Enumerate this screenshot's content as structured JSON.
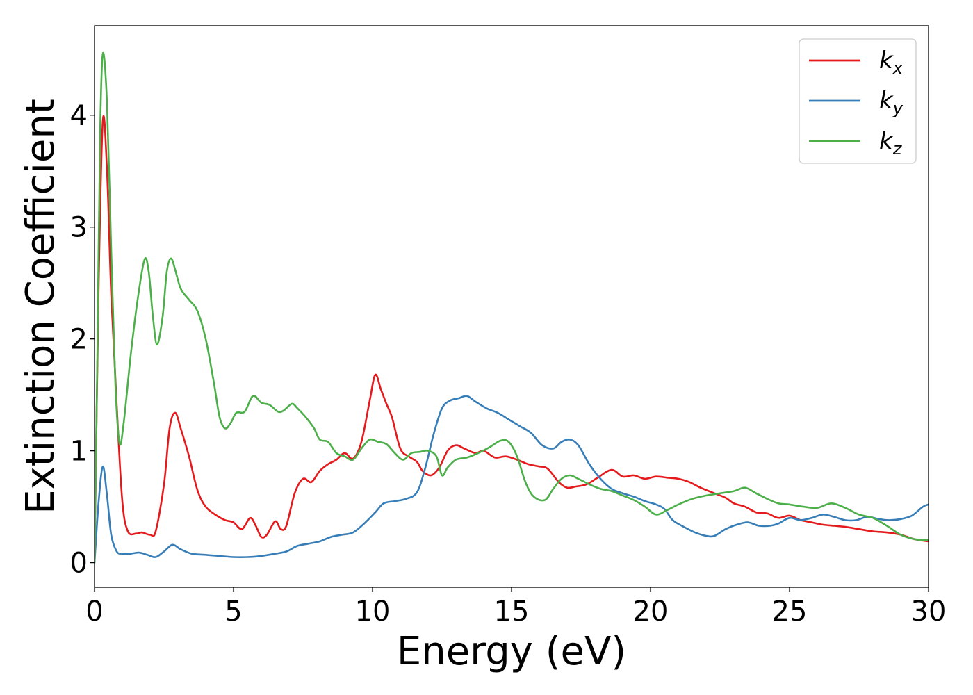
{
  "chart_data": {
    "type": "line",
    "xlabel": "Energy (eV)",
    "ylabel": "Extinction Coefficient",
    "xlim": [
      0,
      30
    ],
    "ylim": [
      -0.22,
      4.8
    ],
    "xticks": [
      0,
      5,
      10,
      15,
      20,
      25,
      30
    ],
    "yticks": [
      0,
      1,
      2,
      3,
      4
    ],
    "grid": false,
    "legend_position": "top-right",
    "series": [
      {
        "name": "k_x",
        "label_base": "k",
        "label_sub": "x",
        "color": "#e41a1c",
        "points": [
          [
            0,
            0.0
          ],
          [
            0.15,
            2.5
          ],
          [
            0.3,
            3.95
          ],
          [
            0.45,
            3.5
          ],
          [
            0.6,
            2.4
          ],
          [
            0.8,
            1.4
          ],
          [
            1.0,
            0.55
          ],
          [
            1.2,
            0.28
          ],
          [
            1.5,
            0.26
          ],
          [
            1.7,
            0.27
          ],
          [
            2.0,
            0.25
          ],
          [
            2.2,
            0.28
          ],
          [
            2.5,
            0.7
          ],
          [
            2.7,
            1.2
          ],
          [
            2.9,
            1.34
          ],
          [
            3.1,
            1.2
          ],
          [
            3.4,
            0.95
          ],
          [
            3.7,
            0.65
          ],
          [
            4.0,
            0.5
          ],
          [
            4.4,
            0.42
          ],
          [
            4.7,
            0.38
          ],
          [
            5.0,
            0.36
          ],
          [
            5.3,
            0.3
          ],
          [
            5.6,
            0.4
          ],
          [
            5.8,
            0.33
          ],
          [
            6.0,
            0.23
          ],
          [
            6.2,
            0.25
          ],
          [
            6.5,
            0.37
          ],
          [
            6.7,
            0.3
          ],
          [
            6.9,
            0.33
          ],
          [
            7.2,
            0.62
          ],
          [
            7.5,
            0.75
          ],
          [
            7.8,
            0.72
          ],
          [
            8.1,
            0.82
          ],
          [
            8.4,
            0.88
          ],
          [
            8.7,
            0.92
          ],
          [
            9.0,
            0.98
          ],
          [
            9.3,
            0.93
          ],
          [
            9.6,
            1.08
          ],
          [
            9.9,
            1.45
          ],
          [
            10.1,
            1.68
          ],
          [
            10.3,
            1.55
          ],
          [
            10.5,
            1.42
          ],
          [
            10.7,
            1.3
          ],
          [
            11.0,
            1.02
          ],
          [
            11.3,
            0.95
          ],
          [
            11.6,
            0.9
          ],
          [
            11.8,
            0.82
          ],
          [
            12.1,
            0.78
          ],
          [
            12.4,
            0.85
          ],
          [
            12.7,
            1.0
          ],
          [
            13.0,
            1.05
          ],
          [
            13.3,
            1.02
          ],
          [
            13.7,
            0.98
          ],
          [
            14.0,
            1.0
          ],
          [
            14.4,
            0.94
          ],
          [
            14.8,
            0.95
          ],
          [
            15.2,
            0.92
          ],
          [
            15.6,
            0.88
          ],
          [
            16.0,
            0.86
          ],
          [
            16.3,
            0.84
          ],
          [
            16.7,
            0.72
          ],
          [
            17.0,
            0.67
          ],
          [
            17.3,
            0.68
          ],
          [
            17.7,
            0.7
          ],
          [
            18.1,
            0.76
          ],
          [
            18.6,
            0.83
          ],
          [
            19.0,
            0.77
          ],
          [
            19.4,
            0.78
          ],
          [
            19.8,
            0.75
          ],
          [
            20.2,
            0.77
          ],
          [
            20.6,
            0.76
          ],
          [
            21.0,
            0.75
          ],
          [
            21.4,
            0.72
          ],
          [
            21.8,
            0.67
          ],
          [
            22.3,
            0.62
          ],
          [
            22.7,
            0.58
          ],
          [
            23.0,
            0.53
          ],
          [
            23.4,
            0.5
          ],
          [
            23.8,
            0.45
          ],
          [
            24.2,
            0.44
          ],
          [
            24.6,
            0.4
          ],
          [
            25.0,
            0.42
          ],
          [
            25.4,
            0.38
          ],
          [
            25.8,
            0.36
          ],
          [
            26.2,
            0.34
          ],
          [
            26.6,
            0.33
          ],
          [
            27.0,
            0.32
          ],
          [
            27.5,
            0.3
          ],
          [
            28.0,
            0.28
          ],
          [
            28.5,
            0.27
          ],
          [
            29.0,
            0.25
          ],
          [
            29.5,
            0.21
          ],
          [
            30.0,
            0.19
          ]
        ]
      },
      {
        "name": "k_y",
        "label_base": "k",
        "label_sub": "y",
        "color": "#377eb8",
        "points": [
          [
            0,
            0.0
          ],
          [
            0.15,
            0.55
          ],
          [
            0.3,
            0.86
          ],
          [
            0.45,
            0.6
          ],
          [
            0.6,
            0.25
          ],
          [
            0.8,
            0.1
          ],
          [
            1.0,
            0.08
          ],
          [
            1.3,
            0.08
          ],
          [
            1.6,
            0.09
          ],
          [
            1.9,
            0.07
          ],
          [
            2.2,
            0.05
          ],
          [
            2.5,
            0.1
          ],
          [
            2.8,
            0.16
          ],
          [
            3.1,
            0.12
          ],
          [
            3.5,
            0.08
          ],
          [
            4.0,
            0.07
          ],
          [
            4.5,
            0.06
          ],
          [
            5.0,
            0.05
          ],
          [
            5.5,
            0.05
          ],
          [
            6.0,
            0.06
          ],
          [
            6.5,
            0.08
          ],
          [
            6.9,
            0.1
          ],
          [
            7.3,
            0.15
          ],
          [
            7.7,
            0.17
          ],
          [
            8.1,
            0.19
          ],
          [
            8.5,
            0.23
          ],
          [
            8.9,
            0.25
          ],
          [
            9.3,
            0.27
          ],
          [
            9.7,
            0.35
          ],
          [
            10.1,
            0.45
          ],
          [
            10.4,
            0.53
          ],
          [
            10.8,
            0.55
          ],
          [
            11.2,
            0.57
          ],
          [
            11.6,
            0.63
          ],
          [
            11.9,
            0.85
          ],
          [
            12.2,
            1.15
          ],
          [
            12.5,
            1.38
          ],
          [
            12.8,
            1.45
          ],
          [
            13.1,
            1.47
          ],
          [
            13.4,
            1.49
          ],
          [
            13.7,
            1.44
          ],
          [
            14.1,
            1.38
          ],
          [
            14.5,
            1.34
          ],
          [
            14.9,
            1.28
          ],
          [
            15.3,
            1.22
          ],
          [
            15.7,
            1.16
          ],
          [
            16.1,
            1.05
          ],
          [
            16.5,
            1.02
          ],
          [
            16.8,
            1.08
          ],
          [
            17.1,
            1.1
          ],
          [
            17.4,
            1.05
          ],
          [
            17.8,
            0.88
          ],
          [
            18.2,
            0.75
          ],
          [
            18.6,
            0.66
          ],
          [
            19.0,
            0.62
          ],
          [
            19.4,
            0.59
          ],
          [
            19.8,
            0.55
          ],
          [
            20.2,
            0.52
          ],
          [
            20.5,
            0.48
          ],
          [
            20.8,
            0.38
          ],
          [
            21.2,
            0.32
          ],
          [
            21.6,
            0.27
          ],
          [
            22.0,
            0.24
          ],
          [
            22.3,
            0.24
          ],
          [
            22.7,
            0.3
          ],
          [
            23.1,
            0.34
          ],
          [
            23.5,
            0.36
          ],
          [
            23.9,
            0.33
          ],
          [
            24.3,
            0.33
          ],
          [
            24.6,
            0.35
          ],
          [
            25.0,
            0.4
          ],
          [
            25.4,
            0.38
          ],
          [
            25.8,
            0.4
          ],
          [
            26.2,
            0.43
          ],
          [
            26.6,
            0.41
          ],
          [
            27.0,
            0.38
          ],
          [
            27.4,
            0.38
          ],
          [
            27.8,
            0.41
          ],
          [
            28.2,
            0.39
          ],
          [
            28.6,
            0.38
          ],
          [
            29.0,
            0.39
          ],
          [
            29.4,
            0.42
          ],
          [
            29.8,
            0.5
          ],
          [
            30.0,
            0.52
          ]
        ]
      },
      {
        "name": "k_z",
        "label_base": "k",
        "label_sub": "z",
        "color": "#4daf4a",
        "points": [
          [
            0,
            0.0
          ],
          [
            0.1,
            1.8
          ],
          [
            0.2,
            3.8
          ],
          [
            0.3,
            4.55
          ],
          [
            0.45,
            4.1
          ],
          [
            0.6,
            2.8
          ],
          [
            0.75,
            1.6
          ],
          [
            0.9,
            1.07
          ],
          [
            1.05,
            1.25
          ],
          [
            1.3,
            1.85
          ],
          [
            1.55,
            2.35
          ],
          [
            1.8,
            2.71
          ],
          [
            1.95,
            2.6
          ],
          [
            2.1,
            2.2
          ],
          [
            2.25,
            1.95
          ],
          [
            2.45,
            2.2
          ],
          [
            2.6,
            2.6
          ],
          [
            2.75,
            2.72
          ],
          [
            2.9,
            2.62
          ],
          [
            3.1,
            2.45
          ],
          [
            3.4,
            2.35
          ],
          [
            3.7,
            2.25
          ],
          [
            4.0,
            2.0
          ],
          [
            4.3,
            1.6
          ],
          [
            4.5,
            1.3
          ],
          [
            4.7,
            1.2
          ],
          [
            4.9,
            1.25
          ],
          [
            5.1,
            1.34
          ],
          [
            5.4,
            1.35
          ],
          [
            5.7,
            1.49
          ],
          [
            6.0,
            1.43
          ],
          [
            6.3,
            1.41
          ],
          [
            6.6,
            1.35
          ],
          [
            6.8,
            1.36
          ],
          [
            7.1,
            1.42
          ],
          [
            7.3,
            1.38
          ],
          [
            7.6,
            1.3
          ],
          [
            7.9,
            1.2
          ],
          [
            8.1,
            1.1
          ],
          [
            8.4,
            1.08
          ],
          [
            8.7,
            0.98
          ],
          [
            9.0,
            0.95
          ],
          [
            9.3,
            0.92
          ],
          [
            9.6,
            1.02
          ],
          [
            9.9,
            1.1
          ],
          [
            10.2,
            1.08
          ],
          [
            10.5,
            1.06
          ],
          [
            10.8,
            0.98
          ],
          [
            11.1,
            0.92
          ],
          [
            11.4,
            0.98
          ],
          [
            11.7,
            0.99
          ],
          [
            12.0,
            1.0
          ],
          [
            12.3,
            0.95
          ],
          [
            12.5,
            0.78
          ],
          [
            12.7,
            0.85
          ],
          [
            13.0,
            0.92
          ],
          [
            13.4,
            0.94
          ],
          [
            13.8,
            0.98
          ],
          [
            14.2,
            1.03
          ],
          [
            14.6,
            1.09
          ],
          [
            14.9,
            1.08
          ],
          [
            15.2,
            0.95
          ],
          [
            15.5,
            0.72
          ],
          [
            15.8,
            0.59
          ],
          [
            16.2,
            0.56
          ],
          [
            16.5,
            0.66
          ],
          [
            16.8,
            0.75
          ],
          [
            17.1,
            0.78
          ],
          [
            17.4,
            0.75
          ],
          [
            17.8,
            0.7
          ],
          [
            18.2,
            0.66
          ],
          [
            18.6,
            0.64
          ],
          [
            19.0,
            0.6
          ],
          [
            19.4,
            0.56
          ],
          [
            19.8,
            0.5
          ],
          [
            20.2,
            0.43
          ],
          [
            20.6,
            0.47
          ],
          [
            21.0,
            0.52
          ],
          [
            21.5,
            0.57
          ],
          [
            22.0,
            0.6
          ],
          [
            22.5,
            0.62
          ],
          [
            23.0,
            0.64
          ],
          [
            23.4,
            0.67
          ],
          [
            23.8,
            0.62
          ],
          [
            24.2,
            0.57
          ],
          [
            24.6,
            0.53
          ],
          [
            25.0,
            0.52
          ],
          [
            25.5,
            0.5
          ],
          [
            26.0,
            0.49
          ],
          [
            26.5,
            0.53
          ],
          [
            27.0,
            0.49
          ],
          [
            27.5,
            0.43
          ],
          [
            28.0,
            0.4
          ],
          [
            28.5,
            0.33
          ],
          [
            29.0,
            0.25
          ],
          [
            29.5,
            0.21
          ],
          [
            30.0,
            0.2
          ]
        ]
      }
    ]
  }
}
